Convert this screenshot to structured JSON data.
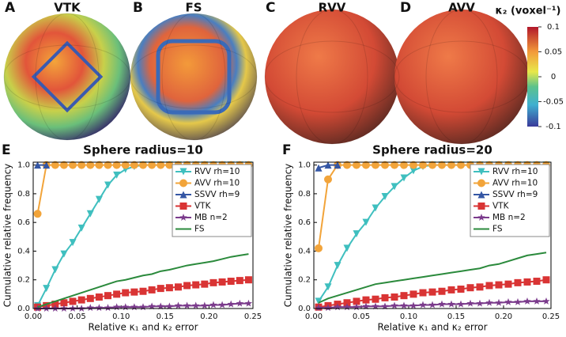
{
  "panels": [
    {
      "letter": "A",
      "title": "VTK"
    },
    {
      "letter": "B",
      "title": "FS"
    },
    {
      "letter": "C",
      "title": "RVV"
    },
    {
      "letter": "D",
      "title": "AVV"
    }
  ],
  "colorbar": {
    "label": "κ₂ (voxel⁻¹)",
    "ticks": [
      0.1,
      0.05,
      0,
      -0.05,
      -0.1
    ],
    "lim": [
      -0.1,
      0.1
    ]
  },
  "chart_data": [
    {
      "type": "line",
      "panel_label": "E",
      "title": "Sphere radius=10",
      "x_label": "Relative κ₁ and κ₂ error",
      "y_label": "Cumulative relative frequency",
      "xlim": [
        0,
        0.25
      ],
      "ylim": [
        0,
        1.02
      ],
      "xticks": [
        {
          "value": 0,
          "label": "0.00"
        },
        0.05,
        {
          "value": 0.1,
          "label": "0.10"
        },
        0.15,
        {
          "value": 0.2,
          "label": "0.20"
        },
        0.25
      ],
      "yticks": [
        {
          "value": 0,
          "label": "0.0"
        },
        0.2,
        0.4,
        0.6,
        0.8,
        {
          "value": 1,
          "label": "1.0"
        }
      ],
      "x": [
        0.005,
        0.015,
        0.025,
        0.035,
        0.045,
        0.055,
        0.065,
        0.075,
        0.085,
        0.095,
        0.105,
        0.115,
        0.125,
        0.135,
        0.145,
        0.155,
        0.165,
        0.175,
        0.185,
        0.195,
        0.205,
        0.215,
        0.225,
        0.235,
        0.245
      ],
      "legend": "upper right",
      "series": [
        {
          "name": "RVV rh=10",
          "color": "#3fbfbf",
          "marker": "v",
          "values": [
            0.02,
            0.14,
            0.27,
            0.38,
            0.46,
            0.56,
            0.66,
            0.76,
            0.86,
            0.93,
            0.97,
            0.99,
            1,
            1,
            1,
            1,
            1,
            1,
            1,
            1,
            1,
            1,
            1,
            1,
            1
          ]
        },
        {
          "name": "AVV rh=10",
          "color": "#f2a43a",
          "marker": "o",
          "values": [
            0.66,
            1,
            1,
            1,
            1,
            1,
            1,
            1,
            1,
            1,
            1,
            1,
            1,
            1,
            1,
            1,
            1,
            1,
            1,
            1,
            1,
            1,
            1,
            1,
            1
          ]
        },
        {
          "name": "SSVV rh=9",
          "color": "#3456a4",
          "marker": "^",
          "values": [
            1,
            1,
            null,
            null,
            null,
            null,
            null,
            null,
            null,
            null,
            null,
            null,
            null,
            null,
            null,
            null,
            null,
            null,
            null,
            null,
            null,
            null,
            null,
            null,
            null
          ]
        },
        {
          "name": "VTK",
          "color": "#d93434",
          "marker": "s",
          "values": [
            0.01,
            0.02,
            0.03,
            0.04,
            0.05,
            0.06,
            0.07,
            0.08,
            0.09,
            0.1,
            0.11,
            0.115,
            0.12,
            0.13,
            0.14,
            0.145,
            0.15,
            0.16,
            0.165,
            0.17,
            0.18,
            0.185,
            0.19,
            0.195,
            0.2
          ]
        },
        {
          "name": "MB n=2",
          "color": "#7b3b8c",
          "marker": "*",
          "values": [
            0,
            0,
            0,
            0,
            0,
            0,
            0.005,
            0.005,
            0.005,
            0.01,
            0.01,
            0.01,
            0.01,
            0.015,
            0.015,
            0.015,
            0.02,
            0.02,
            0.02,
            0.02,
            0.025,
            0.025,
            0.03,
            0.035,
            0.035
          ]
        },
        {
          "name": "FS",
          "color": "#2b8a3c",
          "values": [
            0.01,
            0.03,
            0.05,
            0.07,
            0.09,
            0.11,
            0.13,
            0.15,
            0.17,
            0.19,
            0.2,
            0.215,
            0.23,
            0.24,
            0.26,
            0.27,
            0.285,
            0.3,
            0.31,
            0.32,
            0.33,
            0.345,
            0.36,
            0.37,
            0.38
          ]
        }
      ]
    },
    {
      "type": "line",
      "panel_label": "F",
      "title": "Sphere radius=20",
      "x_label": "Relative κ₁ and κ₂ error",
      "y_label": "Cumulative relative frequency",
      "xlim": [
        0,
        0.25
      ],
      "ylim": [
        0,
        1.02
      ],
      "xticks": [
        {
          "value": 0,
          "label": "0.00"
        },
        0.05,
        {
          "value": 0.1,
          "label": "0.10"
        },
        0.15,
        {
          "value": 0.2,
          "label": "0.20"
        },
        0.25
      ],
      "yticks": [
        {
          "value": 0,
          "label": "0.0"
        },
        0.2,
        0.4,
        0.6,
        0.8,
        {
          "value": 1,
          "label": "1.0"
        }
      ],
      "x": [
        0.005,
        0.015,
        0.025,
        0.035,
        0.045,
        0.055,
        0.065,
        0.075,
        0.085,
        0.095,
        0.105,
        0.115,
        0.125,
        0.135,
        0.145,
        0.155,
        0.165,
        0.175,
        0.185,
        0.195,
        0.205,
        0.215,
        0.225,
        0.235,
        0.245
      ],
      "legend": "upper right",
      "series": [
        {
          "name": "RVV rh=10",
          "color": "#3fbfbf",
          "marker": "v",
          "values": [
            0.05,
            0.15,
            0.3,
            0.42,
            0.52,
            0.6,
            0.7,
            0.78,
            0.85,
            0.91,
            0.96,
            0.99,
            1,
            1,
            1,
            1,
            1,
            1,
            1,
            1,
            1,
            1,
            1,
            1,
            1
          ]
        },
        {
          "name": "AVV rh=10",
          "color": "#f2a43a",
          "marker": "o",
          "values": [
            0.42,
            0.9,
            1,
            1,
            1,
            1,
            1,
            1,
            1,
            1,
            1,
            1,
            1,
            1,
            1,
            1,
            1,
            1,
            1,
            1,
            1,
            1,
            1,
            1,
            1
          ]
        },
        {
          "name": "SSVV rh=9",
          "color": "#3456a4",
          "marker": "^",
          "values": [
            0.98,
            1,
            1,
            null,
            null,
            null,
            null,
            null,
            null,
            null,
            null,
            null,
            null,
            null,
            null,
            null,
            null,
            null,
            null,
            null,
            null,
            null,
            null,
            null,
            null
          ]
        },
        {
          "name": "VTK",
          "color": "#d93434",
          "marker": "s",
          "values": [
            0.01,
            0.02,
            0.03,
            0.04,
            0.05,
            0.06,
            0.065,
            0.075,
            0.08,
            0.09,
            0.1,
            0.11,
            0.115,
            0.12,
            0.13,
            0.135,
            0.145,
            0.15,
            0.16,
            0.165,
            0.17,
            0.18,
            0.185,
            0.19,
            0.2
          ]
        },
        {
          "name": "MB n=2",
          "color": "#7b3b8c",
          "marker": "*",
          "values": [
            0.005,
            0.005,
            0.01,
            0.01,
            0.01,
            0.015,
            0.015,
            0.015,
            0.02,
            0.02,
            0.02,
            0.025,
            0.025,
            0.03,
            0.03,
            0.03,
            0.035,
            0.035,
            0.04,
            0.04,
            0.045,
            0.045,
            0.05,
            0.05,
            0.05
          ]
        },
        {
          "name": "FS",
          "color": "#2b8a3c",
          "values": [
            0.04,
            0.07,
            0.09,
            0.11,
            0.13,
            0.15,
            0.17,
            0.18,
            0.19,
            0.2,
            0.21,
            0.22,
            0.23,
            0.24,
            0.25,
            0.26,
            0.27,
            0.28,
            0.3,
            0.31,
            0.33,
            0.35,
            0.37,
            0.38,
            0.39
          ]
        }
      ]
    }
  ]
}
